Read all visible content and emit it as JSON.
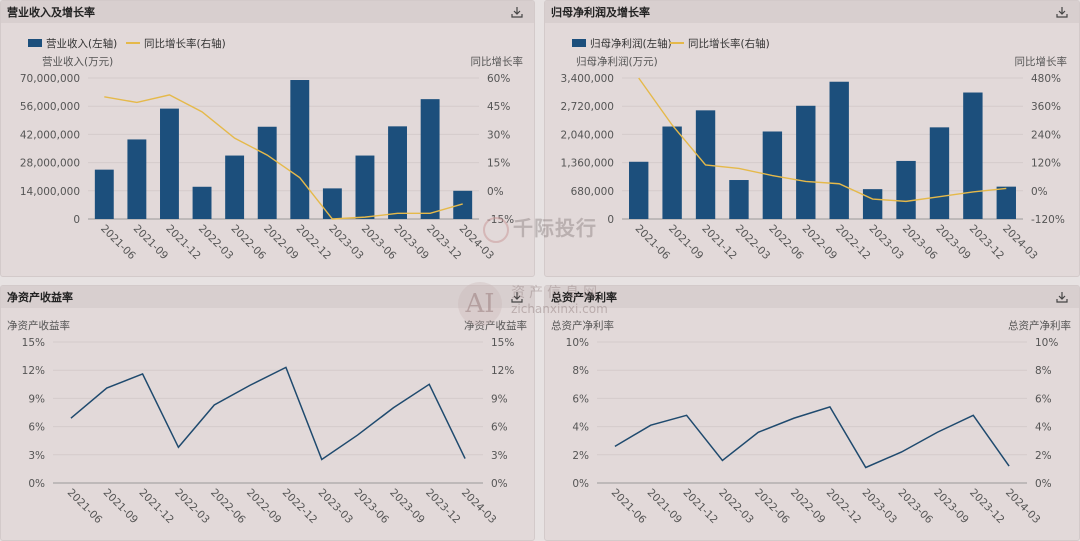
{
  "colors": {
    "bar": "#1c4f7c",
    "line_yellow": "#e5b94a",
    "line_blue": "#1f4a6e",
    "axis_text": "#555555",
    "grid": "#d4cbcb"
  },
  "icons": {
    "download": "download-icon"
  },
  "periods": [
    "2021-06",
    "2021-09",
    "2021-12",
    "2022-03",
    "2022-06",
    "2022-09",
    "2022-12",
    "2023-03",
    "2023-06",
    "2023-09",
    "2023-12",
    "2024-03"
  ],
  "watermark": {
    "brand": "千际投行",
    "site": "zichanxinxi.com",
    "logo_text": "AI",
    "cn": "资产信息网"
  },
  "panels": [
    {
      "title": "营业收入及增长率"
    },
    {
      "title": "归母净利润及增长率"
    },
    {
      "title": "净资产收益率"
    },
    {
      "title": "总资产净利率"
    }
  ],
  "chart_data": [
    {
      "type": "bar",
      "title": "营业收入及增长率",
      "legend": [
        "营业收入(左轴)",
        "同比增长率(右轴)"
      ],
      "ylabel_left": "营业收入(万元)",
      "ylabel_right": "同比增长率",
      "ylim_left": [
        0,
        70000000
      ],
      "yticks_left": [
        "70,000,000",
        "56,000,000",
        "42,000,000",
        "28,000,000",
        "14,000,000",
        "0"
      ],
      "ylim_right": [
        -15,
        60
      ],
      "yticks_right": [
        "60%",
        "45%",
        "30%",
        "15%",
        "0%",
        "-15%"
      ],
      "categories": [
        "2021-06",
        "2021-09",
        "2021-12",
        "2022-03",
        "2022-06",
        "2022-09",
        "2022-12",
        "2023-03",
        "2023-06",
        "2023-09",
        "2023-12",
        "2024-03"
      ],
      "series": [
        {
          "name": "营业收入(左轴)",
          "kind": "bar",
          "values": [
            24500000,
            39500000,
            54800000,
            16000000,
            31500000,
            45800000,
            69000000,
            15200000,
            31500000,
            46000000,
            59500000,
            14000000
          ]
        },
        {
          "name": "同比增长率(右轴)",
          "kind": "line",
          "values": [
            50,
            47,
            51,
            42,
            28,
            19,
            7,
            -15,
            -14,
            -12,
            -12,
            -7
          ]
        }
      ]
    },
    {
      "type": "bar",
      "title": "归母净利润及增长率",
      "legend": [
        "归母净利润(左轴)",
        "同比增长率(右轴)"
      ],
      "ylabel_left": "归母净利润(万元)",
      "ylabel_right": "同比增长率",
      "ylim_left": [
        0,
        3400000
      ],
      "yticks_left": [
        "3,400,000",
        "2,720,000",
        "2,040,000",
        "1,360,000",
        "680,000",
        "0"
      ],
      "ylim_right": [
        -120,
        480
      ],
      "yticks_right": [
        "480%",
        "360%",
        "240%",
        "120%",
        "0%",
        "-120%"
      ],
      "categories": [
        "2021-06",
        "2021-09",
        "2021-12",
        "2022-03",
        "2022-06",
        "2022-09",
        "2022-12",
        "2023-03",
        "2023-06",
        "2023-09",
        "2023-12",
        "2024-03"
      ],
      "series": [
        {
          "name": "归母净利润(左轴)",
          "kind": "bar",
          "values": [
            1380000,
            2230000,
            2620000,
            940000,
            2110000,
            2730000,
            3310000,
            720000,
            1400000,
            2210000,
            3050000,
            780000
          ]
        },
        {
          "name": "同比增长率(右轴)",
          "kind": "line",
          "values": [
            480,
            280,
            110,
            95,
            65,
            40,
            30,
            -35,
            -45,
            -25,
            -5,
            10
          ]
        }
      ]
    },
    {
      "type": "line",
      "title": "净资产收益率",
      "ylabel_left": "净资产收益率",
      "ylabel_right": "净资产收益率",
      "ylim": [
        0,
        15
      ],
      "yticks": [
        "15%",
        "12%",
        "9%",
        "6%",
        "3%",
        "0%"
      ],
      "categories": [
        "2021-06",
        "2021-09",
        "2021-12",
        "2022-03",
        "2022-06",
        "2022-09",
        "2022-12",
        "2023-03",
        "2023-06",
        "2023-09",
        "2023-12",
        "2024-03"
      ],
      "series": [
        {
          "values": [
            6.9,
            10.1,
            11.6,
            3.8,
            8.3,
            10.4,
            12.3,
            2.5,
            5.1,
            8.0,
            10.5,
            2.6
          ]
        }
      ]
    },
    {
      "type": "line",
      "title": "总资产净利率",
      "ylabel_left": "总资产净利率",
      "ylabel_right": "总资产净利率",
      "ylim": [
        0,
        10
      ],
      "yticks": [
        "10%",
        "8%",
        "6%",
        "4%",
        "2%",
        "0%"
      ],
      "categories": [
        "2021-06",
        "2021-09",
        "2021-12",
        "2022-03",
        "2022-06",
        "2022-09",
        "2022-12",
        "2023-03",
        "2023-06",
        "2023-09",
        "2023-12",
        "2024-03"
      ],
      "series": [
        {
          "values": [
            2.6,
            4.1,
            4.8,
            1.6,
            3.6,
            4.6,
            5.4,
            1.1,
            2.2,
            3.6,
            4.8,
            1.2
          ]
        }
      ]
    }
  ]
}
